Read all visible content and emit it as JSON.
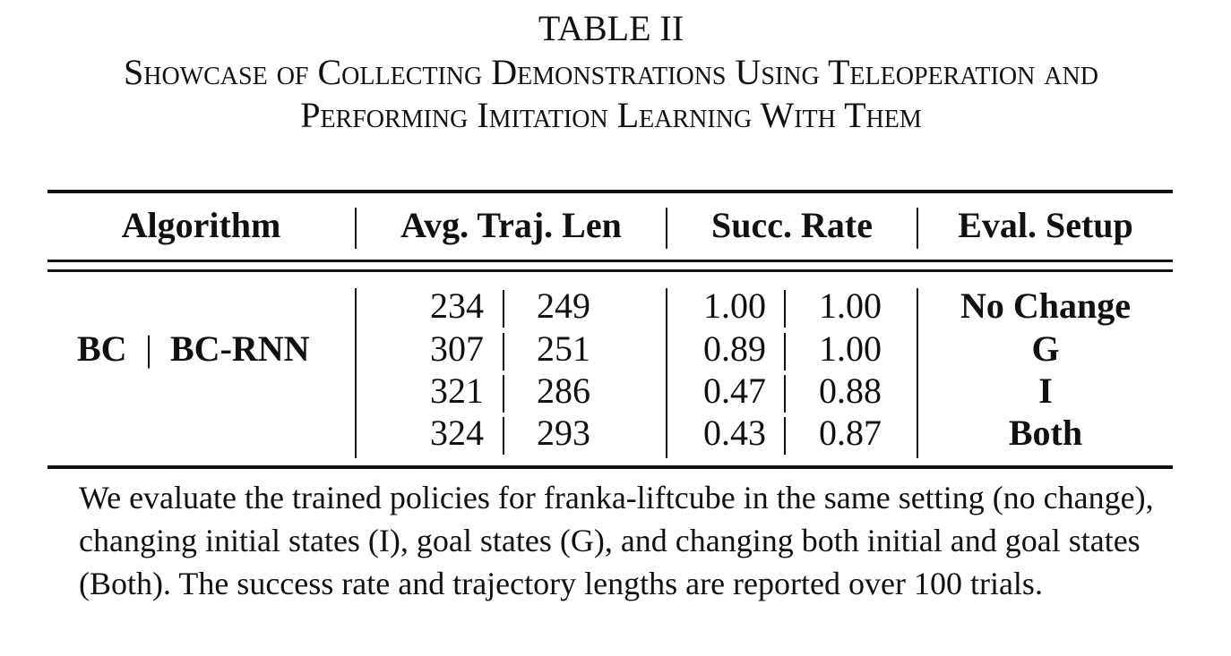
{
  "caption": {
    "number": "TABLE II",
    "title_line1": "Showcase of Collecting Demonstrations Using Teleoperation and",
    "title_line2": "Performing Imitation Learning With Them"
  },
  "table": {
    "headers": {
      "algorithm": "Algorithm",
      "traj_len": "Avg. Traj. Len",
      "succ_rate": "Succ. Rate",
      "eval_setup": "Eval. Setup"
    },
    "algorithm": {
      "left": "BC",
      "separator": "|",
      "right": "BC-RNN"
    },
    "rows": [
      {
        "traj_bc": "234",
        "traj_bcrnn": "249",
        "succ_bc": "1.00",
        "succ_bcrnn": "1.00",
        "setup": "No Change"
      },
      {
        "traj_bc": "307",
        "traj_bcrnn": "251",
        "succ_bc": "0.89",
        "succ_bcrnn": "1.00",
        "setup": "G"
      },
      {
        "traj_bc": "321",
        "traj_bcrnn": "286",
        "succ_bc": "0.47",
        "succ_bcrnn": "0.88",
        "setup": "I"
      },
      {
        "traj_bc": "324",
        "traj_bcrnn": "293",
        "succ_bc": "0.43",
        "succ_bcrnn": "0.87",
        "setup": "Both"
      }
    ]
  },
  "note": "We evaluate the trained policies for franka-liftcube in the same setting (no change), changing initial states (I), goal states (G), and changing both initial and goal states (Both). The success rate and trajectory lengths are reported over 100 trials."
}
